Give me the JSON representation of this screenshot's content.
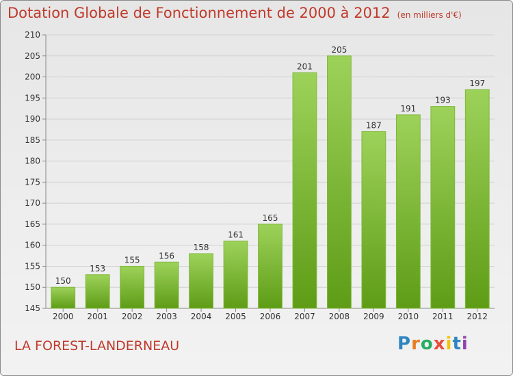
{
  "header": {
    "title": "Dotation Globale de Fonctionnement de 2000 à 2012",
    "unit": "(en milliers d'€)"
  },
  "footer": {
    "commune": "LA FOREST-LANDERNEAU",
    "logo": "Proxiti"
  },
  "chart_data": {
    "type": "bar",
    "title": "Dotation Globale de Fonctionnement de 2000 à 2012",
    "subtitle": "(en milliers d'€)",
    "xlabel": "",
    "ylabel": "",
    "categories": [
      "2000",
      "2001",
      "2002",
      "2003",
      "2004",
      "2005",
      "2006",
      "2007",
      "2008",
      "2009",
      "2010",
      "2011",
      "2012"
    ],
    "values": [
      150,
      153,
      155,
      156,
      158,
      161,
      165,
      201,
      205,
      187,
      191,
      193,
      197
    ],
    "ylim": [
      145,
      210
    ],
    "yticks": [
      145,
      150,
      155,
      160,
      165,
      170,
      175,
      180,
      185,
      190,
      195,
      200,
      205,
      210
    ],
    "grid": true,
    "colors": {
      "bar_top": "#9dd25a",
      "bar_bottom": "#5e9c16",
      "title": "#c0392b"
    }
  }
}
